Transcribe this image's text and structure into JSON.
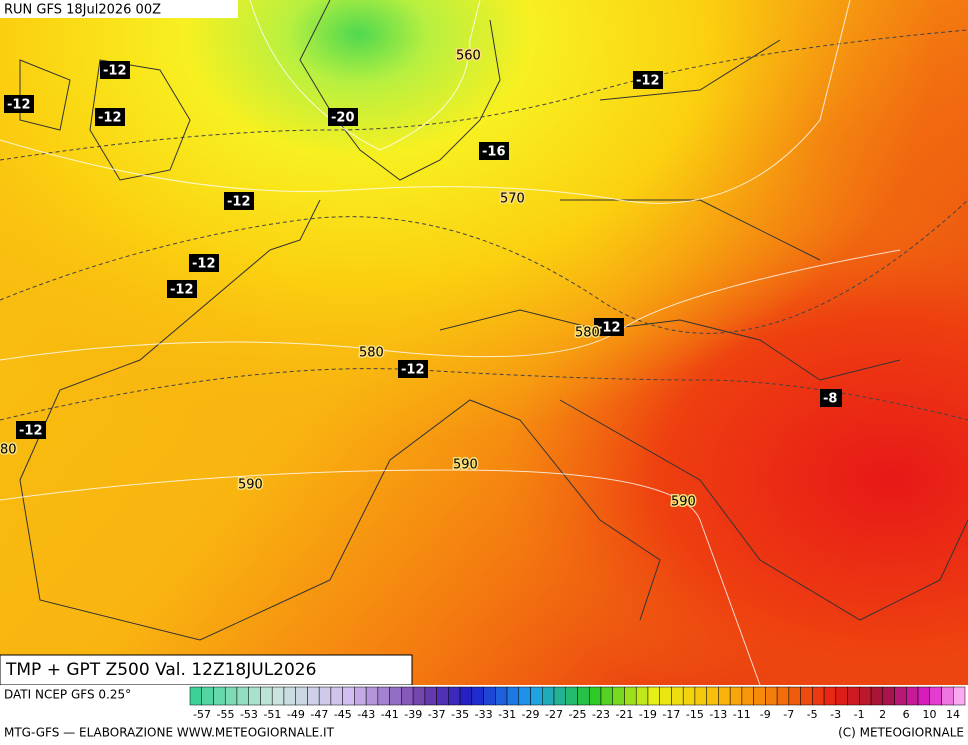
{
  "header": {
    "run": "RUN GFS 18Jul2026 00Z"
  },
  "map": {
    "temperature_labels": [
      "-12",
      "-12",
      "-12",
      "-20",
      "-16",
      "-12",
      "-12",
      "-12",
      "-12",
      "-12",
      "-12",
      "-8",
      "-12"
    ],
    "height_labels": [
      "560",
      "570",
      "580",
      "580",
      "590",
      "590",
      "590",
      "80"
    ]
  },
  "title": "TMP + GPT Z500 Val. 12Z18JUL2026",
  "footer": {
    "source": "DATI NCEP GFS 0.25°",
    "credit": "MTG-GFS — ELABORAZIONE WWW.METEOGIORNALE.IT",
    "copyright": "(C) METEOGIORNALE",
    "scale_labels": [
      "-57",
      "-55",
      "-53",
      "-51",
      "-49",
      "-47",
      "-45",
      "-43",
      "-41",
      "-39",
      "-37",
      "-35",
      "-33",
      "-31",
      "-29",
      "-27",
      "-25",
      "-23",
      "-21",
      "-19",
      "-17",
      "-15",
      "-13",
      "-11",
      "-9",
      "-7",
      "-5",
      "-3",
      "-1",
      "2",
      "6",
      "10",
      "14"
    ]
  }
}
